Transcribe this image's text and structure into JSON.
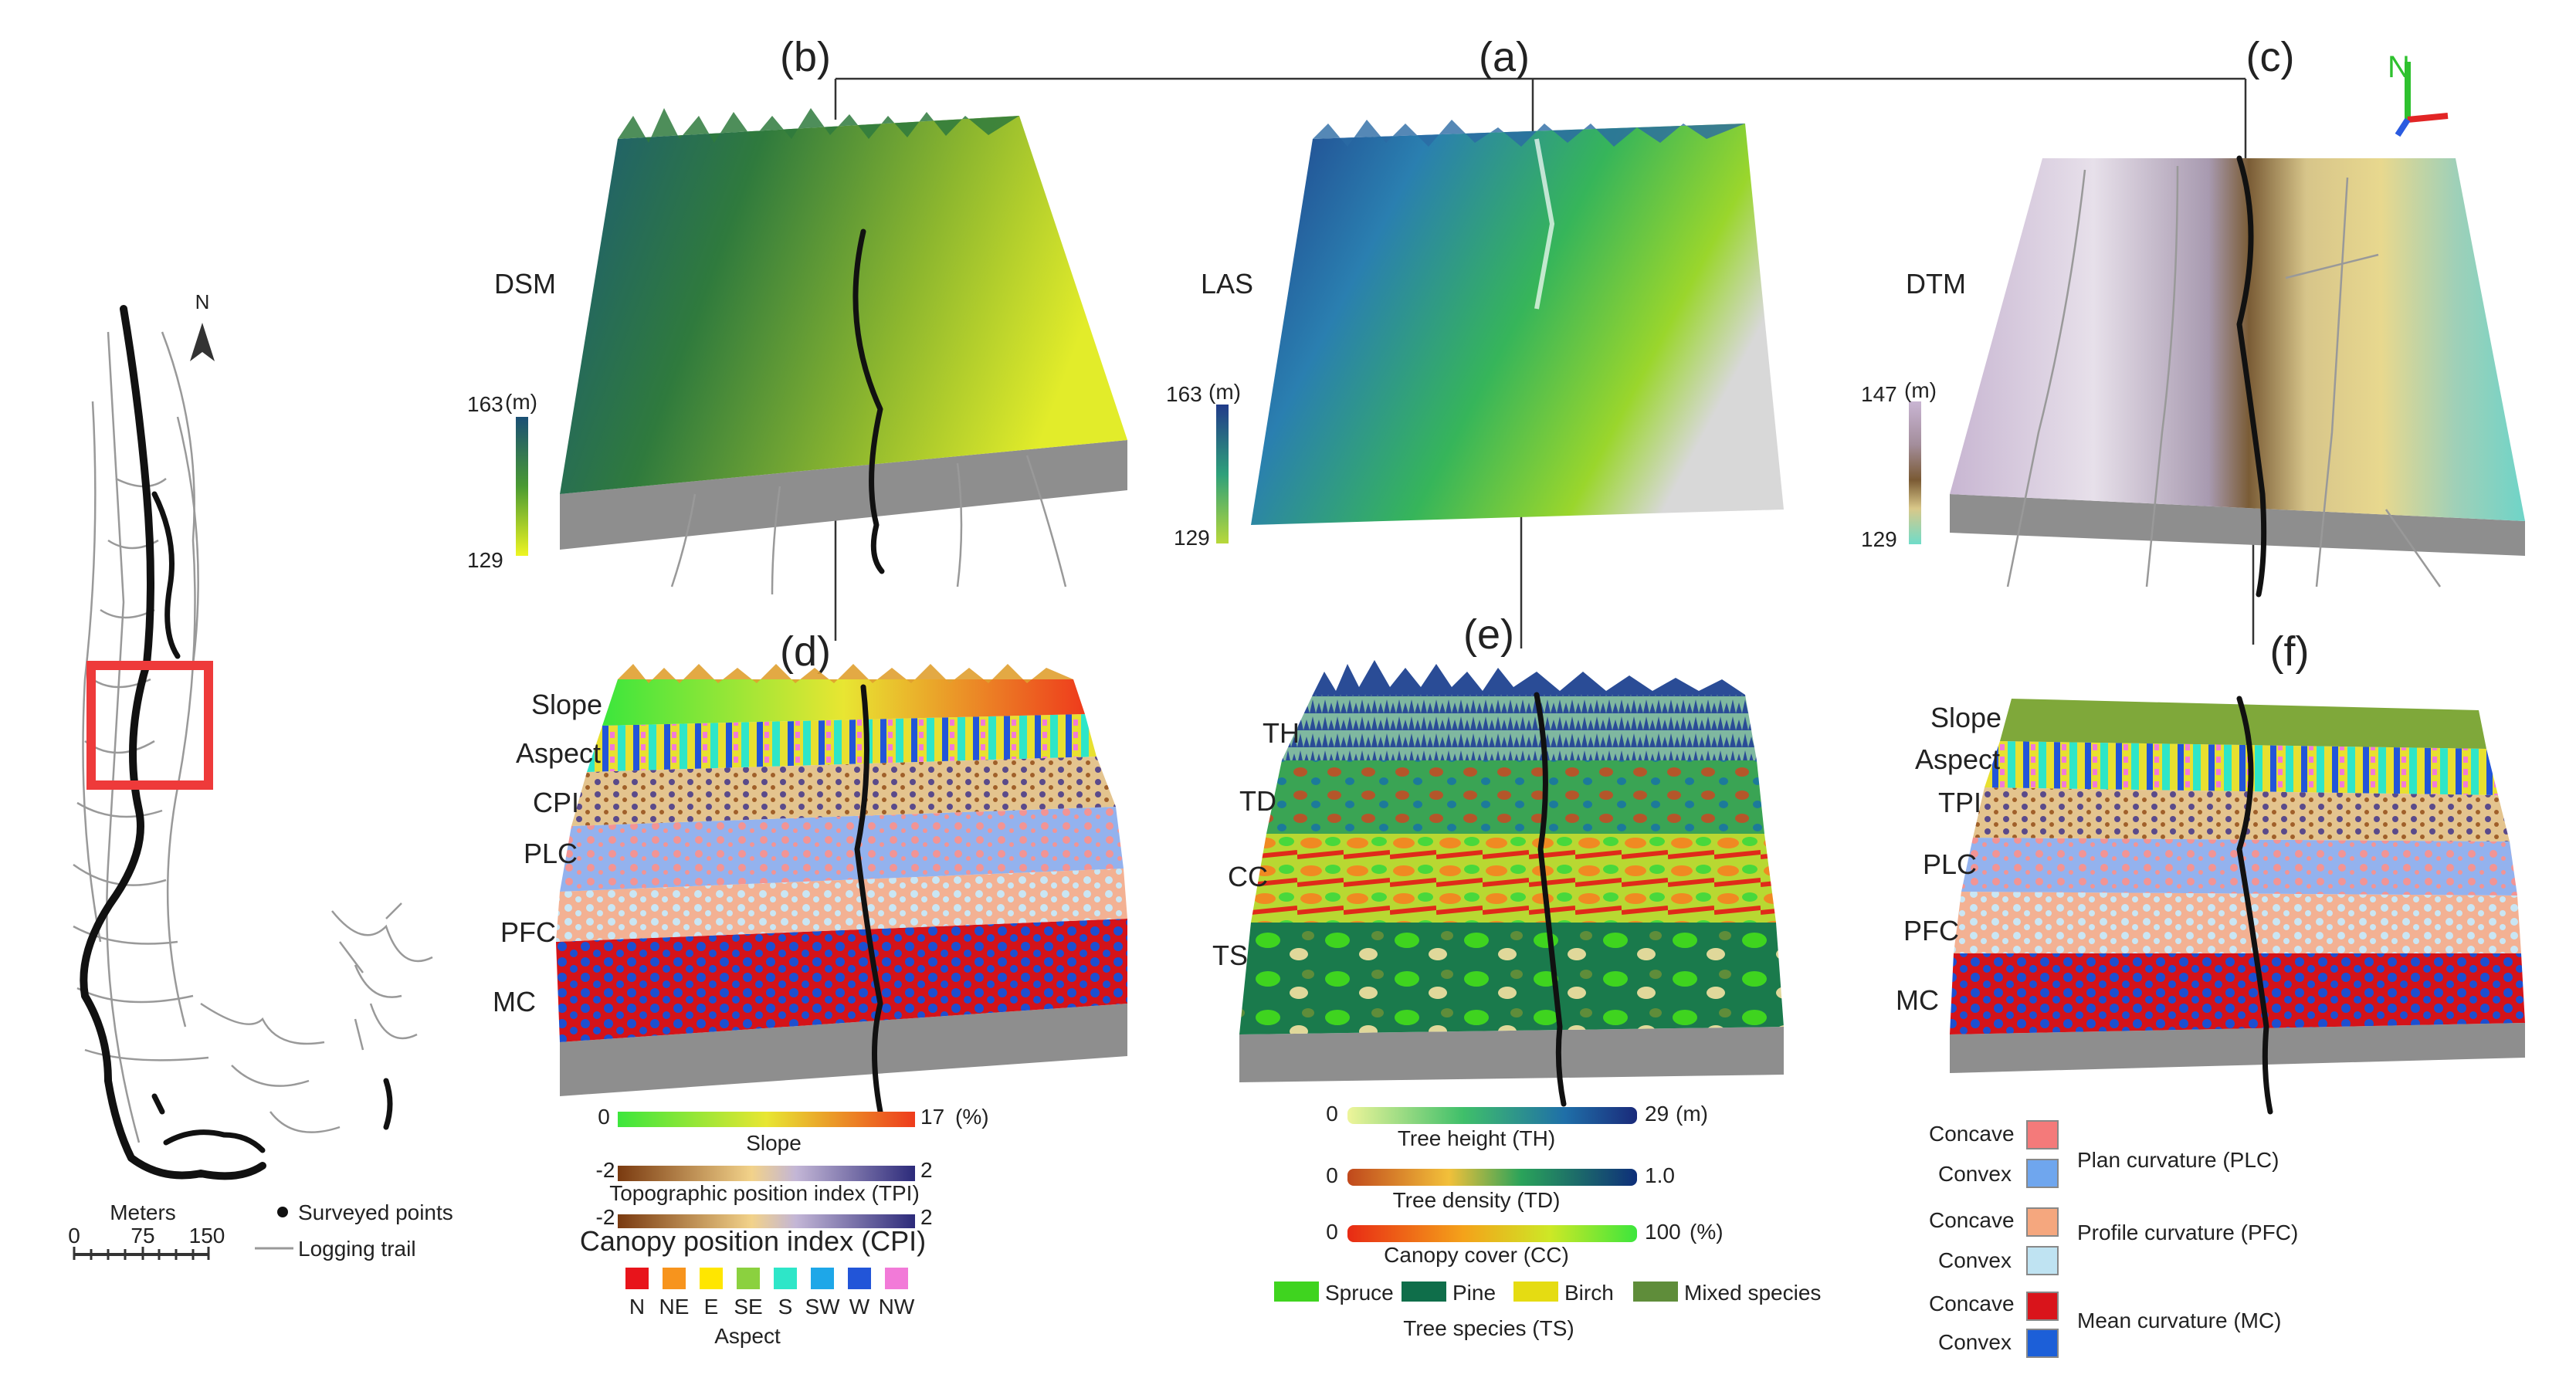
{
  "panels": {
    "a": "(a)",
    "b": "(b)",
    "c": "(c)",
    "d": "(d)",
    "e": "(e)",
    "f": "(f)"
  },
  "row_labels": {
    "dsm": "DSM",
    "las": "LAS",
    "dtm": "DTM",
    "d": [
      "Slope",
      "Aspect",
      "CPI",
      "PLC",
      "PFC",
      "MC"
    ],
    "e": [
      "TH",
      "TD",
      "CC",
      "TS"
    ],
    "f": [
      "Slope",
      "Aspect",
      "TPI",
      "PLC",
      "PFC",
      "MC"
    ]
  },
  "scales": {
    "dsm": {
      "max": "163",
      "unit": "(m)",
      "min": "129"
    },
    "las": {
      "max": "163",
      "unit": "(m)",
      "min": "129"
    },
    "dtm": {
      "max": "147",
      "unit": "(m)",
      "min": "129"
    }
  },
  "map": {
    "north": "N",
    "scale_title": "Meters",
    "scale_ticks": [
      "0",
      "75",
      "150"
    ],
    "legend_points": "Surveyed points",
    "legend_trail": "Logging trail"
  },
  "legend_d": {
    "slope": {
      "min": "0",
      "max": "17",
      "unit": "(%)",
      "title": "Slope"
    },
    "tpi": {
      "min": "-2",
      "max": "2",
      "title": "Topographic position index (TPI)"
    },
    "cpi": {
      "min": "-2",
      "max": "2",
      "title": "Canopy position index (CPI)"
    },
    "aspect": {
      "classes": [
        "N",
        "NE",
        "E",
        "SE",
        "S",
        "SW",
        "W",
        "NW"
      ],
      "title": "Aspect",
      "colors": [
        "#e8141b",
        "#f7941d",
        "#ffe600",
        "#8bd13f",
        "#2ee6c8",
        "#1ea7e8",
        "#2255d8",
        "#f27ad8"
      ]
    }
  },
  "legend_e": {
    "th": {
      "min": "0",
      "max": "29",
      "unit": "(m)",
      "title": "Tree height (TH)"
    },
    "td": {
      "min": "0",
      "max": "1.0",
      "title": "Tree density (TD)"
    },
    "cc": {
      "min": "0",
      "max": "100",
      "unit": "(%)",
      "title": "Canopy cover (CC)"
    },
    "species": [
      {
        "name": "Spruce",
        "color": "#3fd41f"
      },
      {
        "name": "Pine",
        "color": "#0f6e4a"
      },
      {
        "name": "Birch",
        "color": "#e5dc12"
      },
      {
        "name": "Mixed species",
        "color": "#5f8d3a"
      }
    ],
    "species_title": "Tree species (TS)"
  },
  "legend_f": {
    "concave": "Concave",
    "convex": "Convex",
    "plc": "Plan curvature (PLC)",
    "pfc": "Profile curvature (PFC)",
    "mc": "Mean curvature (MC)",
    "colors": {
      "plc_concave": "#f47a7a",
      "plc_convex": "#6fa6ee",
      "pfc_concave": "#f5a77e",
      "pfc_convex": "#bfe3f2",
      "mc_concave": "#d9141b",
      "mc_convex": "#1c5fd8"
    }
  }
}
